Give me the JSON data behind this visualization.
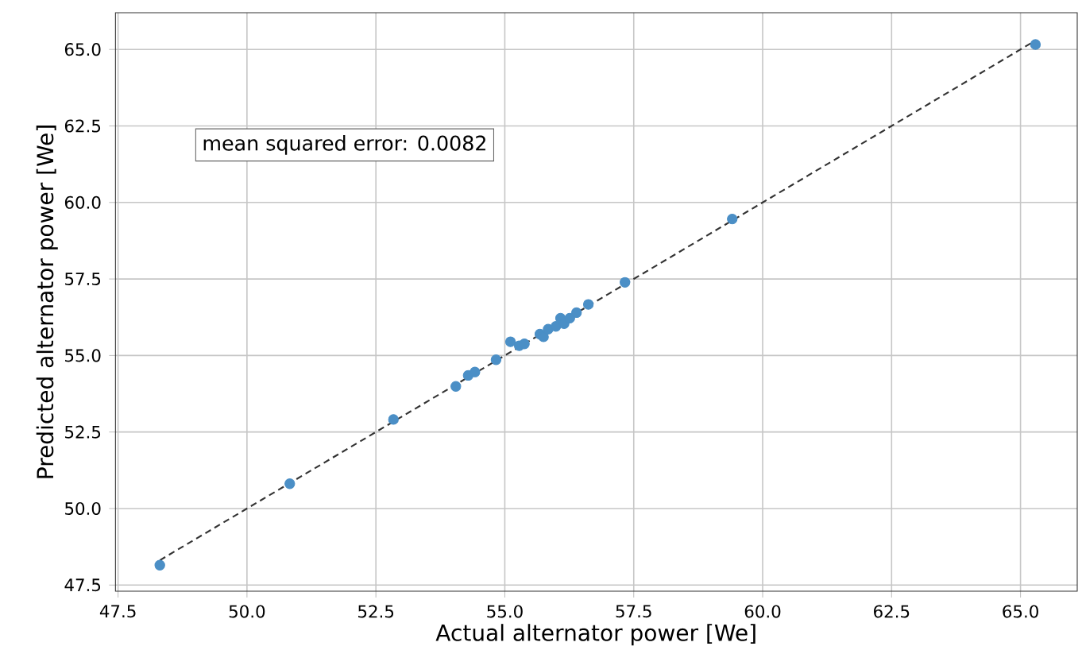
{
  "chart_data": {
    "type": "scatter",
    "xlabel": "Actual alternator power [We]",
    "ylabel": "Predicted alternator power [We]",
    "annotations": [
      "mean squared error: 0.0082"
    ],
    "xlim": [
      47.45,
      66.1
    ],
    "ylim": [
      47.3,
      66.2
    ],
    "xticks": [
      {
        "value": 47.5,
        "label": "47.5"
      },
      {
        "value": 50,
        "label": "50.0"
      },
      {
        "value": 52.5,
        "label": "52.5"
      },
      {
        "value": 55,
        "label": "55.0"
      },
      {
        "value": 57.5,
        "label": "57.5"
      },
      {
        "value": 60,
        "label": "60.0"
      },
      {
        "value": 62.5,
        "label": "62.5"
      },
      {
        "value": 65,
        "label": "65.0"
      }
    ],
    "yticks": [
      {
        "value": 47.5,
        "label": "47.5"
      },
      {
        "value": 50,
        "label": "50.0"
      },
      {
        "value": 52.5,
        "label": "52.5"
      },
      {
        "value": 55,
        "label": "55.0"
      },
      {
        "value": 57.5,
        "label": "57.5"
      },
      {
        "value": 60,
        "label": "60.0"
      },
      {
        "value": 62.5,
        "label": "62.5"
      },
      {
        "value": 65,
        "label": "65.0"
      }
    ],
    "grid": true,
    "marker": "circle",
    "series": [
      {
        "color": "#4b8fc6",
        "x": [
          48.31,
          50.83,
          52.84,
          54.05,
          54.29,
          54.42,
          54.83,
          55.11,
          55.28,
          55.38,
          55.68,
          55.75,
          55.84,
          55.99,
          56.08,
          56.15,
          56.26,
          56.39,
          56.62,
          57.33,
          59.41,
          65.29
        ],
        "values": [
          48.15,
          50.81,
          52.91,
          53.99,
          54.35,
          54.46,
          54.86,
          55.45,
          55.32,
          55.38,
          55.7,
          55.61,
          55.86,
          55.95,
          56.22,
          56.04,
          56.22,
          56.4,
          56.67,
          57.39,
          59.46,
          65.16
        ]
      },
      {
        "type": "line",
        "color": "#333333",
        "line_style": "dashed",
        "marker": "none",
        "x": [
          48.31,
          65.29
        ],
        "values": [
          48.31,
          65.29
        ]
      }
    ]
  }
}
